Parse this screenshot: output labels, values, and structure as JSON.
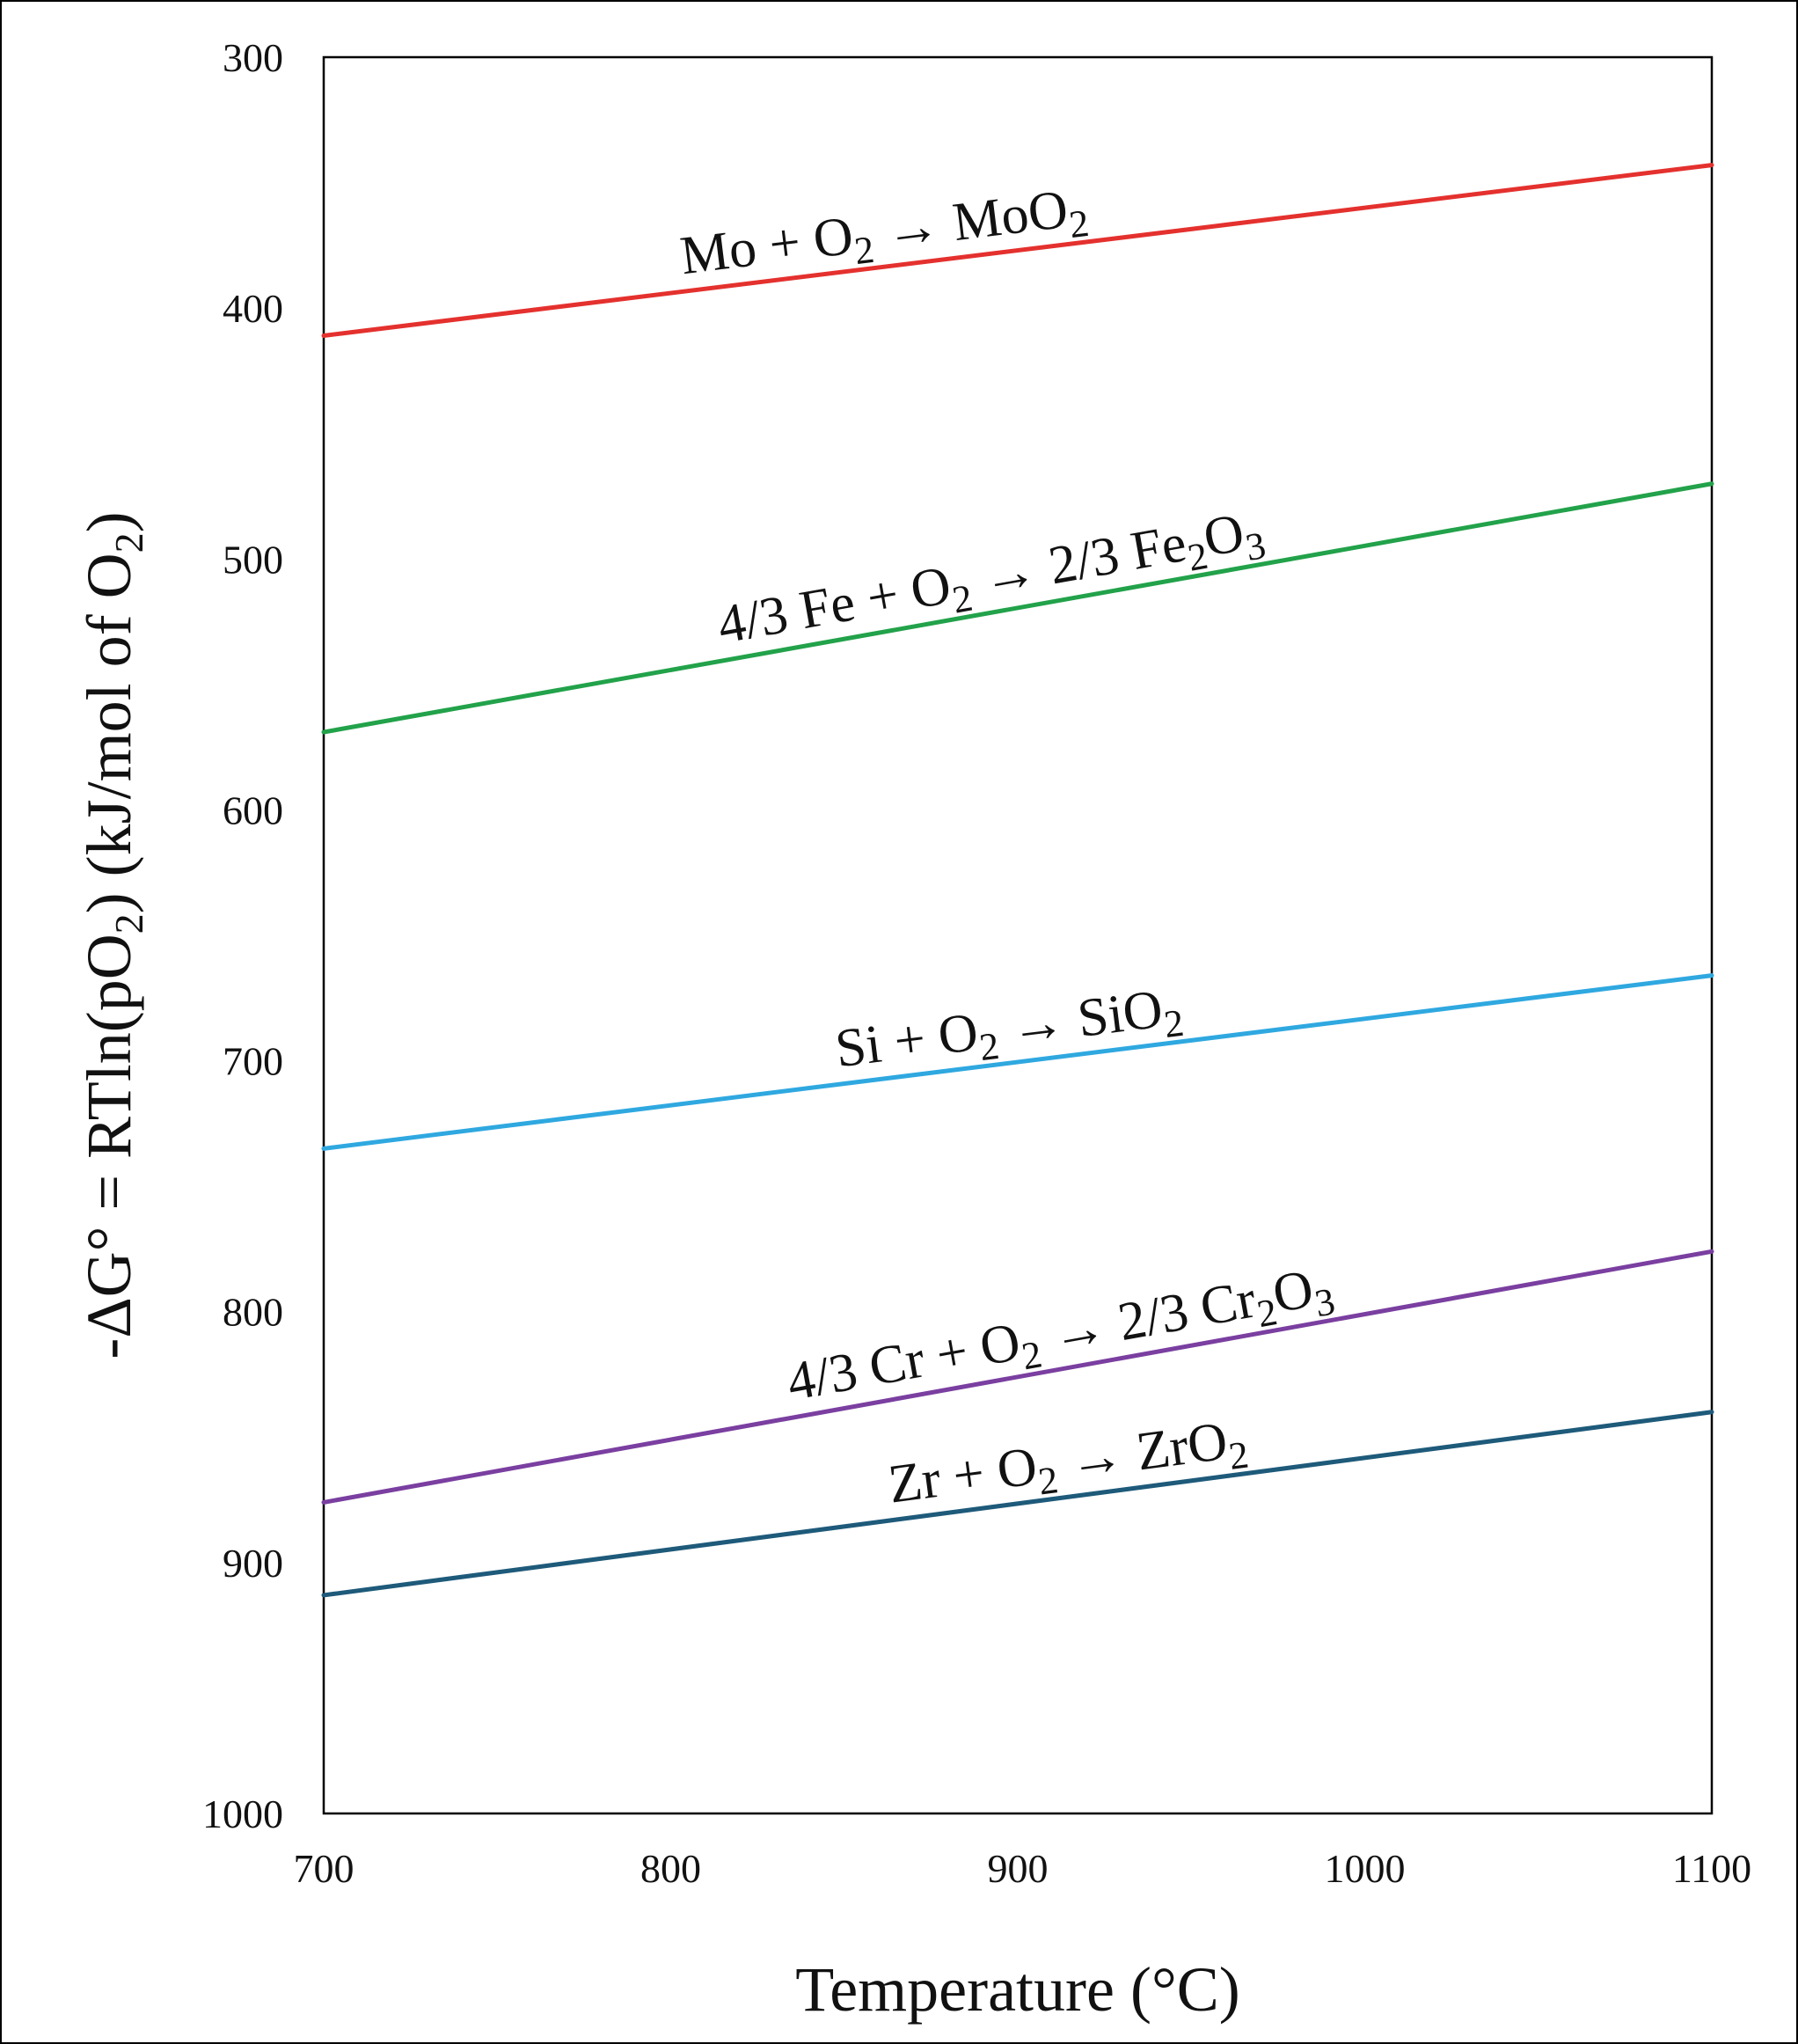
{
  "chart_data": {
    "type": "line",
    "title": "",
    "xlabel": "Temperature (°C)",
    "ylabel_parts": {
      "pre": "-ΔG° = RTln(pO",
      "sub": "2",
      "mid": ") (kJ/mol of O",
      "sub2": "2",
      "post": ")"
    },
    "xlim": [
      700,
      1100
    ],
    "ylim": [
      300,
      1000
    ],
    "y_inverted": true,
    "x_ticks": [
      700,
      800,
      900,
      1000,
      1100
    ],
    "y_ticks": [
      300,
      400,
      500,
      600,
      700,
      800,
      900,
      1000
    ],
    "grid": false,
    "legend": "none",
    "series": [
      {
        "key": "mo",
        "color": "#e4312e",
        "x": [
          700,
          1100
        ],
        "y": [
          411,
          343
        ],
        "label_parts": [
          {
            "t": "Mo + O"
          },
          {
            "t": "2",
            "sub": true
          },
          {
            "t": " → MoO"
          },
          {
            "t": "2",
            "sub": true
          }
        ],
        "label_at_x": 862,
        "label_text": "Mo + O2 → MoO2"
      },
      {
        "key": "fe",
        "color": "#22a24a",
        "x": [
          700,
          1100
        ],
        "y": [
          569,
          470
        ],
        "label_parts": [
          {
            "t": "4/3 Fe + O"
          },
          {
            "t": "2",
            "sub": true
          },
          {
            "t": " → 2/3 Fe"
          },
          {
            "t": "2",
            "sub": true
          },
          {
            "t": "O"
          },
          {
            "t": "3",
            "sub": true
          }
        ],
        "label_at_x": 893,
        "label_text": "4/3 Fe + O2 → 2/3 Fe2O3"
      },
      {
        "key": "si",
        "color": "#2fa8e0",
        "x": [
          700,
          1100
        ],
        "y": [
          735,
          666
        ],
        "label_parts": [
          {
            "t": "Si + O"
          },
          {
            "t": "2",
            "sub": true
          },
          {
            "t": " → SiO"
          },
          {
            "t": "2",
            "sub": true
          }
        ],
        "label_at_x": 898,
        "label_text": "Si + O2 → SiO2"
      },
      {
        "key": "cr",
        "color": "#7a3fa0",
        "x": [
          700,
          1100
        ],
        "y": [
          876,
          776
        ],
        "label_parts": [
          {
            "t": "4/3 Cr + O"
          },
          {
            "t": "2",
            "sub": true
          },
          {
            "t": " → 2/3 Cr"
          },
          {
            "t": "2",
            "sub": true
          },
          {
            "t": "O"
          },
          {
            "t": "3",
            "sub": true
          }
        ],
        "label_at_x": 913,
        "label_text": "4/3 Cr + O2 → 2/3 Cr2O3"
      },
      {
        "key": "zr",
        "color": "#1e5a7a",
        "x": [
          700,
          1100
        ],
        "y": [
          913,
          840
        ],
        "label_parts": [
          {
            "t": "Zr + O"
          },
          {
            "t": "2",
            "sub": true
          },
          {
            "t": " → ZrO"
          },
          {
            "t": "2",
            "sub": true
          }
        ],
        "label_at_x": 915,
        "label_text": "Zr + O2 → ZrO2"
      }
    ]
  }
}
